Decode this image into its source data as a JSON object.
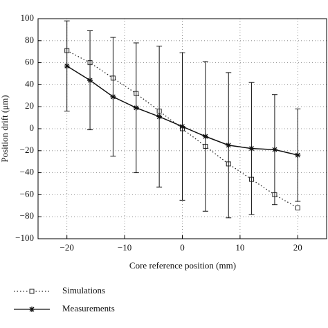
{
  "chart_data": {
    "type": "errorline",
    "x_label": "Core reference position (mm)",
    "y_label": "Position drift (μm)",
    "xlim": [
      -25,
      25
    ],
    "ylim": [
      -100,
      100
    ],
    "xticks": [
      {
        "value": -20,
        "label": "−20"
      },
      {
        "value": -10,
        "label": "−10"
      },
      0,
      10,
      20
    ],
    "yticks": [
      {
        "value": -100,
        "label": "−100"
      },
      {
        "value": -80,
        "label": "−80"
      },
      {
        "value": -60,
        "label": "−60"
      },
      {
        "value": -40,
        "label": "−40"
      },
      {
        "value": -20,
        "label": "−20"
      },
      0,
      20,
      40,
      60,
      80,
      100
    ],
    "grid": true,
    "x": [
      -20,
      -16,
      -12,
      -8,
      -4,
      0,
      4,
      8,
      12,
      16,
      20
    ],
    "series": [
      {
        "name": "Simulations",
        "color": "#222222",
        "line": "dotted",
        "marker": "square",
        "values": [
          71,
          60,
          46,
          32,
          16,
          0,
          -16,
          -32,
          -46,
          -60,
          -72
        ]
      },
      {
        "name": "Measurements",
        "color": "#111111",
        "line": "solid",
        "marker": "star",
        "values": [
          57,
          44,
          29,
          19,
          11,
          2,
          -7,
          -15,
          -18,
          -19,
          -24
        ],
        "errors": [
          41,
          45,
          54,
          59,
          64,
          67,
          68,
          66,
          60,
          50,
          42
        ]
      }
    ]
  }
}
